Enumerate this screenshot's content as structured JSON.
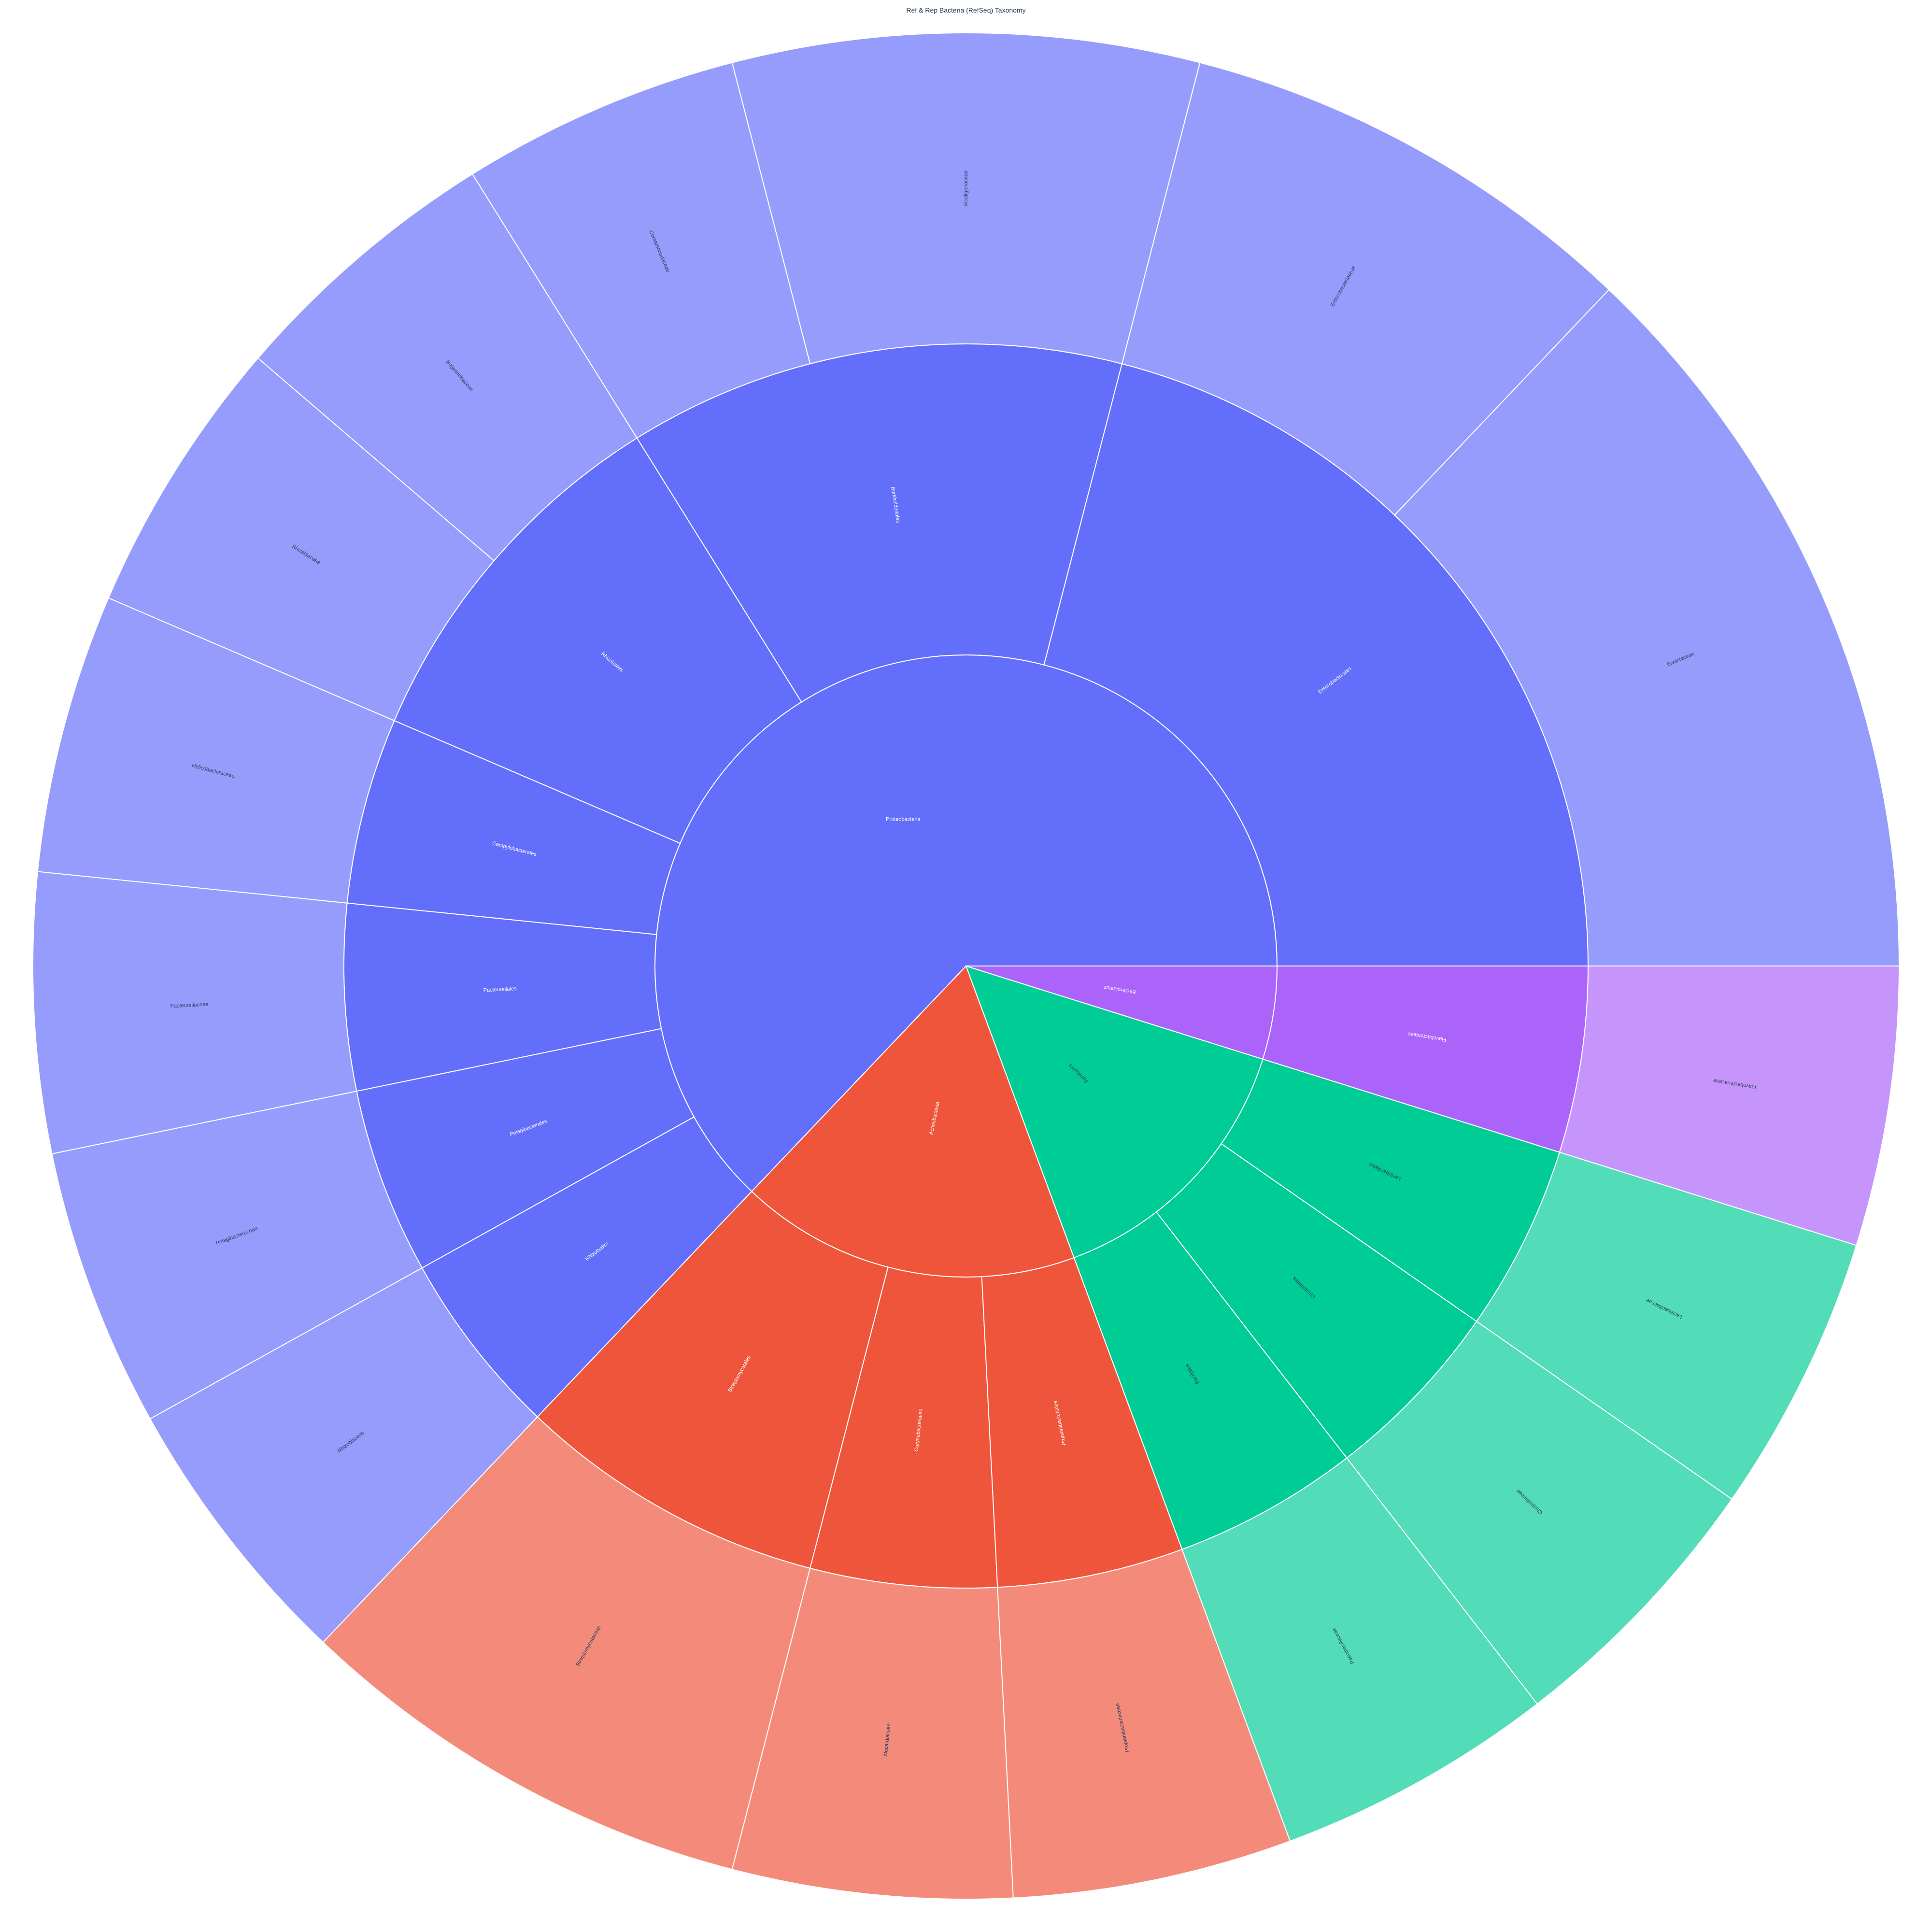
{
  "chart_data": {
    "type": "sunburst",
    "title": "Ref & Rep Bacteria (RefSeq) Taxonomy",
    "root": {
      "name": "",
      "children": [
        {
          "name": "Proteobacteria",
          "color": "#636efa",
          "children": [
            {
              "name": "Enterobacterales",
              "children": [
                {
                  "name": "Erwiniaceae",
                  "value": 8
                },
                {
                  "name": "Enterobacteriaceae",
                  "value": 5
                }
              ]
            },
            {
              "name": "Burkholderiales",
              "children": [
                {
                  "name": "Alcaligenaceae",
                  "value": 5
                },
                {
                  "name": "Comamonadaceae",
                  "value": 3
                }
              ]
            },
            {
              "name": "Rhizobiales",
              "children": [
                {
                  "name": "Beijerinckiaceae",
                  "value": 3
                },
                {
                  "name": "Rhizobiaceae",
                  "value": 3
                }
              ]
            },
            {
              "name": "Campylobacterales",
              "children": [
                {
                  "name": "Helicobacteraceae",
                  "value": 3
                }
              ]
            },
            {
              "name": "Pasteurellales",
              "children": [
                {
                  "name": "Pasteurellaceae",
                  "value": 3
                }
              ]
            },
            {
              "name": "Pelagibacterales",
              "children": [
                {
                  "name": "Pelagibacteraceae",
                  "value": 3
                }
              ]
            },
            {
              "name": "Rhizobiales",
              "children": [
                {
                  "name": "Rhizobiaceae",
                  "value": 3
                }
              ]
            }
          ]
        },
        {
          "name": "Actinobacteria",
          "color": "#ef553b",
          "children": [
            {
              "name": "Streptomycetales",
              "children": [
                {
                  "name": "Streptomycetaceae",
                  "value": 5
                }
              ]
            },
            {
              "name": "Corynebacteriales",
              "children": [
                {
                  "name": "Nocardiaceae",
                  "value": 3
                }
              ]
            },
            {
              "name": "Propionibacteriales",
              "children": [
                {
                  "name": "Propionibacteriaceae",
                  "value": 3
                }
              ]
            }
          ]
        },
        {
          "name": "Firmicutes",
          "color": "#00cc96",
          "children": [
            {
              "name": "Bacillales",
              "children": [
                {
                  "name": "Paenibacillaceae",
                  "value": 3
                }
              ]
            },
            {
              "name": "Clostridiales",
              "children": [
                {
                  "name": "Clostridiaceae",
                  "value": 3
                }
              ]
            },
            {
              "name": "Lactobacillales",
              "children": [
                {
                  "name": "Lactobacillaceae",
                  "value": 3
                }
              ]
            }
          ]
        },
        {
          "name": "Bacteroidetes",
          "color": "#ab63fa",
          "children": [
            {
              "name": "Flavobacteriales",
              "children": [
                {
                  "name": "Flavobacteriaceae",
                  "value": 3
                }
              ]
            }
          ]
        }
      ]
    }
  }
}
